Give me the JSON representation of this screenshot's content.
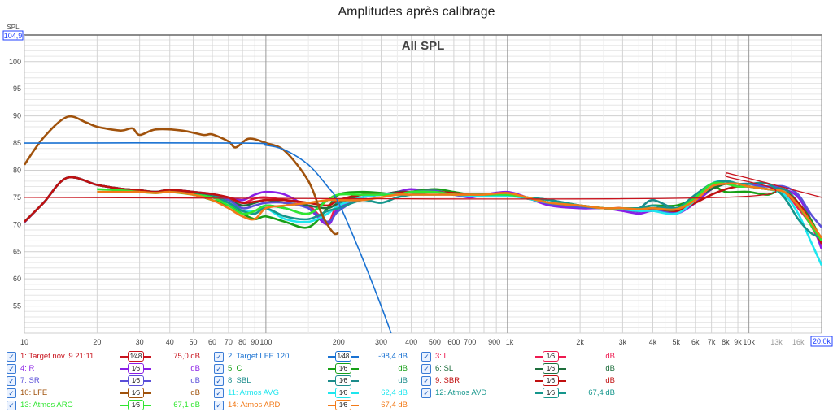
{
  "chart_data": {
    "type": "line",
    "title": "Amplitudes après calibrage",
    "subtitle": "All SPL",
    "ylabel": "SPL",
    "ymax_box": "104,9",
    "xmax_box": "20,0k",
    "xscale": "log",
    "xlim": [
      10,
      20000
    ],
    "ylim": [
      50,
      104.9
    ],
    "grid": true,
    "legend": "bottom",
    "yticks": [
      55,
      60,
      65,
      70,
      75,
      80,
      85,
      90,
      95,
      100
    ],
    "xticks": [
      {
        "v": 10,
        "t": "10"
      },
      {
        "v": 20,
        "t": "20"
      },
      {
        "v": 30,
        "t": "30"
      },
      {
        "v": 40,
        "t": "40"
      },
      {
        "v": 50,
        "t": "50"
      },
      {
        "v": 60,
        "t": "60"
      },
      {
        "v": 70,
        "t": "70"
      },
      {
        "v": 80,
        "t": "80"
      },
      {
        "v": 90,
        "t": "90"
      },
      {
        "v": 100,
        "t": "100"
      },
      {
        "v": 200,
        "t": "200"
      },
      {
        "v": 300,
        "t": "300"
      },
      {
        "v": 400,
        "t": "400"
      },
      {
        "v": 500,
        "t": "500"
      },
      {
        "v": 600,
        "t": "600"
      },
      {
        "v": 700,
        "t": "700"
      },
      {
        "v": 900,
        "t": "900"
      },
      {
        "v": 1000,
        "t": "1k"
      },
      {
        "v": 2000,
        "t": "2k"
      },
      {
        "v": 3000,
        "t": "3k"
      },
      {
        "v": 4000,
        "t": "4k"
      },
      {
        "v": 5000,
        "t": "5k"
      },
      {
        "v": 6000,
        "t": "6k"
      },
      {
        "v": 7000,
        "t": "7k"
      },
      {
        "v": 8000,
        "t": "8k"
      },
      {
        "v": 9000,
        "t": "9k"
      },
      {
        "v": 10000,
        "t": "10k"
      },
      {
        "v": 13000,
        "t": "13k"
      },
      {
        "v": 16000,
        "t": "16k"
      }
    ],
    "x": [
      10,
      12,
      15,
      20,
      25,
      30,
      35,
      40,
      50,
      60,
      70,
      80,
      90,
      100,
      120,
      150,
      180,
      200,
      250,
      300,
      350,
      400,
      500,
      600,
      700,
      800,
      1000,
      1200,
      1500,
      2000,
      2500,
      3000,
      3500,
      4000,
      5000,
      6000,
      7000,
      8000,
      9000,
      10000,
      12000,
      14000,
      16000,
      18000,
      20000
    ],
    "series": [
      {
        "name": "1: Target nov. 9 21:11",
        "color": "#c8141e",
        "filter": "1⁄48",
        "value": "75,0 dB",
        "width": 1.3,
        "points": [
          [
            10,
            75
          ],
          [
            7900,
            75
          ],
          [
            8000,
            79
          ],
          [
            9000,
            79
          ],
          [
            20000,
            75
          ]
        ]
      },
      {
        "name": "2: Target LFE 120",
        "color": "#1a72d2",
        "filter": "1⁄48",
        "value": "-98,4 dB",
        "width": 1.6,
        "points": [
          [
            10,
            85
          ],
          [
            80,
            85
          ],
          [
            100,
            84.6
          ],
          [
            120,
            83.7
          ],
          [
            150,
            81
          ],
          [
            180,
            77
          ],
          [
            200,
            74
          ],
          [
            250,
            64
          ],
          [
            300,
            55
          ],
          [
            330,
            50
          ]
        ]
      },
      {
        "name": "3: L",
        "color": "#ee1a50",
        "filter": "1⁄6",
        "value": "dB",
        "y": [
          70.5,
          74,
          78.6,
          77.3,
          76.6,
          76.3,
          76,
          76.4,
          76,
          75.6,
          74.8,
          74,
          74.8,
          75,
          74.5,
          73.5,
          70.5,
          74,
          75,
          75.5,
          75.5,
          76,
          76,
          75.8,
          75.5,
          75.6,
          75.8,
          75,
          74,
          73.5,
          73,
          73,
          72.5,
          73,
          72.5,
          74.5,
          76.5,
          77.5,
          77,
          77,
          76.5,
          76,
          73,
          70,
          66
        ]
      },
      {
        "name": "4: R",
        "color": "#8a1ee6",
        "filter": "1⁄6",
        "value": "dB",
        "y": [
          70.4,
          74,
          78.6,
          77.3,
          76.6,
          76.3,
          76,
          76.4,
          76,
          75.6,
          75,
          74.5,
          75.5,
          76,
          75.5,
          73,
          70,
          73,
          75,
          75.5,
          76,
          76.5,
          76,
          75.5,
          75,
          75.5,
          76,
          75,
          73.5,
          73,
          73,
          72.5,
          72,
          72.5,
          72,
          74,
          76.5,
          77.5,
          77.5,
          77,
          77,
          76.5,
          75,
          71,
          65.5
        ]
      },
      {
        "name": "5: C",
        "color": "#17a017",
        "filter": "1⁄6",
        "value": "dB",
        "y": [
          70.5,
          74,
          78.6,
          77.3,
          76.6,
          76.3,
          76,
          76.2,
          75.5,
          74.5,
          73.5,
          72,
          71,
          71.5,
          70.5,
          69.5,
          73,
          75.5,
          76,
          75.8,
          75.5,
          76,
          76.5,
          76,
          75.5,
          75.5,
          75.5,
          75,
          74,
          73.5,
          73,
          73,
          73,
          73.5,
          73.5,
          75,
          77,
          76,
          76,
          76,
          75.5,
          76.5,
          74,
          71,
          67
        ]
      },
      {
        "name": "6: SL",
        "color": "#1e6e3c",
        "filter": "1⁄6",
        "value": "dB",
        "y": [
          70.5,
          74,
          78.6,
          77.3,
          76.6,
          76.3,
          76,
          76.4,
          75.8,
          75.2,
          74.5,
          73.5,
          74,
          74.5,
          74,
          73.5,
          73,
          74,
          75.5,
          75.5,
          76,
          76,
          76,
          75.5,
          75.2,
          75.3,
          75.5,
          74.8,
          74,
          73.5,
          73,
          72.8,
          72.6,
          73,
          73,
          75,
          76.5,
          77.5,
          77.5,
          77,
          76.5,
          76,
          73.5,
          70.5,
          66.5
        ]
      },
      {
        "name": "7: SR",
        "color": "#5a4fd8",
        "filter": "1⁄6",
        "value": "dB",
        "y": [
          70.5,
          74,
          78.6,
          77.3,
          76.6,
          76.3,
          76,
          76.4,
          76,
          75.5,
          74.5,
          73,
          73.5,
          74,
          74,
          73,
          70.5,
          72.5,
          75,
          75.5,
          75.8,
          76,
          76.2,
          75.5,
          75.3,
          75.5,
          75.7,
          75,
          73.8,
          73.2,
          73,
          72.8,
          72.4,
          72.8,
          72.3,
          74.5,
          77,
          78,
          77.5,
          77.5,
          77,
          77,
          75.5,
          72,
          69.5
        ]
      },
      {
        "name": "8: SBL",
        "color": "#1c8c8c",
        "filter": "1⁄6",
        "value": "dB",
        "y": [
          70.5,
          74,
          78.6,
          77.3,
          76.6,
          76.3,
          76,
          76.4,
          76,
          75.5,
          74,
          72.5,
          72.5,
          73.5,
          73,
          72,
          74.5,
          74,
          75,
          75.5,
          75.5,
          76,
          76,
          75.5,
          75.5,
          75.5,
          75.5,
          75,
          74.5,
          73.5,
          73,
          73,
          73,
          74.5,
          73,
          75,
          77,
          78,
          77.5,
          77,
          76.5,
          76.5,
          74,
          70.5,
          67
        ]
      },
      {
        "name": "9: SBR",
        "color": "#c01010",
        "filter": "1⁄6",
        "value": "dB",
        "y": [
          70.5,
          74,
          78.6,
          77.3,
          76.6,
          76.3,
          76,
          76.4,
          76,
          75.6,
          75,
          74,
          74.2,
          74.5,
          74.5,
          74,
          73.5,
          74.5,
          75.5,
          75.5,
          75.8,
          76,
          76,
          75.8,
          75.5,
          75.5,
          75.8,
          75,
          74,
          73.5,
          73,
          73,
          72.5,
          73,
          72.5,
          74,
          75.5,
          76.5,
          77,
          77,
          76.5,
          76,
          74,
          70.5,
          66.5
        ]
      },
      {
        "name": "10: LFE",
        "color": "#a0520c",
        "filter": "1⁄6",
        "value": "dB",
        "points": [
          [
            10,
            81
          ],
          [
            12,
            86
          ],
          [
            15,
            89.8
          ],
          [
            18,
            88.8
          ],
          [
            20,
            88
          ],
          [
            25,
            87.3
          ],
          [
            28,
            87.7
          ],
          [
            30,
            86.5
          ],
          [
            35,
            87.5
          ],
          [
            45,
            87.3
          ],
          [
            55,
            86.5
          ],
          [
            60,
            86.6
          ],
          [
            70,
            85.3
          ],
          [
            75,
            84.2
          ],
          [
            85,
            85.8
          ],
          [
            100,
            85
          ],
          [
            120,
            83.5
          ],
          [
            150,
            78
          ],
          [
            170,
            72
          ],
          [
            190,
            68.5
          ],
          [
            200,
            68.5
          ]
        ]
      },
      {
        "name": "11: Atmos AVG",
        "color": "#1ee6ee",
        "filter": "1⁄6",
        "value": "62,4 dB",
        "y": [
          null,
          null,
          null,
          null,
          null,
          null,
          null,
          null,
          75.5,
          75,
          74,
          72.5,
          72.5,
          73,
          71,
          70.5,
          72,
          73.5,
          75,
          75.5,
          75.5,
          75.5,
          75.5,
          75.5,
          75.3,
          75.3,
          75.3,
          74.8,
          74,
          73.5,
          73,
          72.8,
          72.5,
          72.5,
          72,
          74.5,
          77.5,
          78,
          77.5,
          77,
          76.5,
          75.5,
          72,
          67,
          62.5
        ]
      },
      {
        "name": "12: Atmos AVD",
        "color": "#15968c",
        "filter": "1⁄6",
        "value": "67,4 dB",
        "y": [
          null,
          null,
          null,
          null,
          null,
          null,
          null,
          null,
          75.5,
          75,
          74,
          72.5,
          72,
          73,
          71.5,
          71,
          72.5,
          73,
          74.5,
          74,
          75,
          75.5,
          76,
          75.5,
          75.5,
          75.5,
          75.5,
          75,
          74.5,
          73.5,
          73,
          73,
          73,
          73.5,
          73,
          75.5,
          77.5,
          78,
          77.5,
          77.5,
          77.5,
          75,
          71,
          68.5,
          67.5
        ]
      },
      {
        "name": "13: Atmos ARG",
        "color": "#30e630",
        "filter": "1⁄6",
        "value": "67,1 dB",
        "y": [
          null,
          null,
          null,
          76.5,
          76.3,
          76,
          75.8,
          76,
          75.5,
          75,
          73.5,
          72,
          72.5,
          73.5,
          73,
          72,
          74.5,
          75.5,
          75.5,
          75.5,
          75.5,
          76,
          76,
          75.5,
          75.5,
          75.5,
          75.5,
          75,
          74,
          73.5,
          73,
          73,
          72.8,
          73,
          72.8,
          75,
          77.5,
          77.5,
          77,
          77,
          76.5,
          76,
          73.5,
          70,
          67
        ]
      },
      {
        "name": "14: Atmos ARD",
        "color": "#f27a18",
        "filter": "1⁄6",
        "value": "67,4 dB",
        "y": [
          null,
          null,
          null,
          76,
          76,
          76,
          75.8,
          76,
          75.5,
          74.5,
          73,
          71.5,
          71,
          73,
          73.5,
          74,
          74.5,
          74.5,
          74.5,
          75,
          75.5,
          75.5,
          75.5,
          75.5,
          75.5,
          75.5,
          75.8,
          75,
          74,
          73.5,
          73,
          73,
          72.8,
          73,
          72.8,
          74.5,
          77,
          77.5,
          77.5,
          77,
          76.5,
          76,
          73.5,
          70.5,
          67.5
        ]
      }
    ]
  },
  "legend_order": [
    0,
    3,
    6,
    9,
    12,
    1,
    4,
    7,
    10,
    13,
    2,
    5,
    8,
    11
  ]
}
